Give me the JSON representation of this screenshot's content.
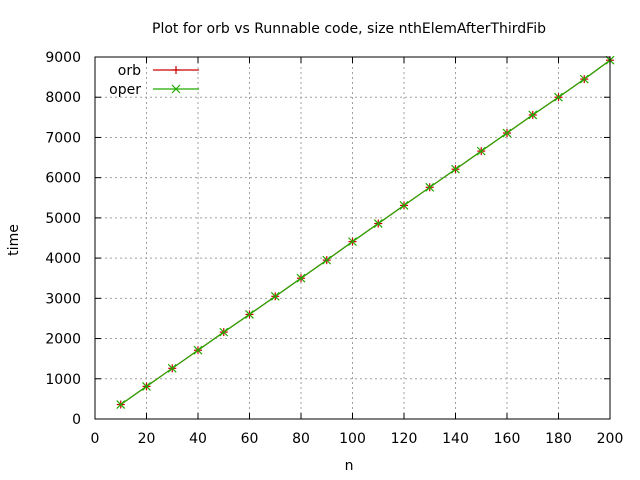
{
  "chart_data": {
    "type": "line",
    "title": "Plot for orb vs Runnable code, size nthElemAfterThirdFib",
    "xlabel": "n",
    "ylabel": "time",
    "xlim": [
      0,
      200
    ],
    "ylim": [
      0,
      9000
    ],
    "x_ticks": [
      0,
      20,
      40,
      60,
      80,
      100,
      120,
      140,
      160,
      180,
      200
    ],
    "y_ticks": [
      0,
      1000,
      2000,
      3000,
      4000,
      5000,
      6000,
      7000,
      8000,
      9000
    ],
    "grid": true,
    "legend_position": "top-left",
    "x": [
      10,
      20,
      30,
      40,
      50,
      60,
      70,
      80,
      90,
      100,
      110,
      120,
      130,
      140,
      150,
      160,
      170,
      180,
      190,
      200
    ],
    "series": [
      {
        "name": "orb",
        "color": "#cc0000",
        "marker": "plus",
        "values": [
          360,
          810,
          1260,
          1710,
          2160,
          2600,
          3050,
          3500,
          3950,
          4410,
          4860,
          5310,
          5760,
          6210,
          6660,
          7110,
          7560,
          8000,
          8450,
          8920
        ]
      },
      {
        "name": "oper",
        "color": "#22aa00",
        "marker": "cross",
        "values": [
          360,
          810,
          1260,
          1710,
          2160,
          2600,
          3050,
          3500,
          3950,
          4410,
          4860,
          5310,
          5760,
          6210,
          6660,
          7110,
          7560,
          8000,
          8450,
          8920
        ]
      }
    ]
  }
}
